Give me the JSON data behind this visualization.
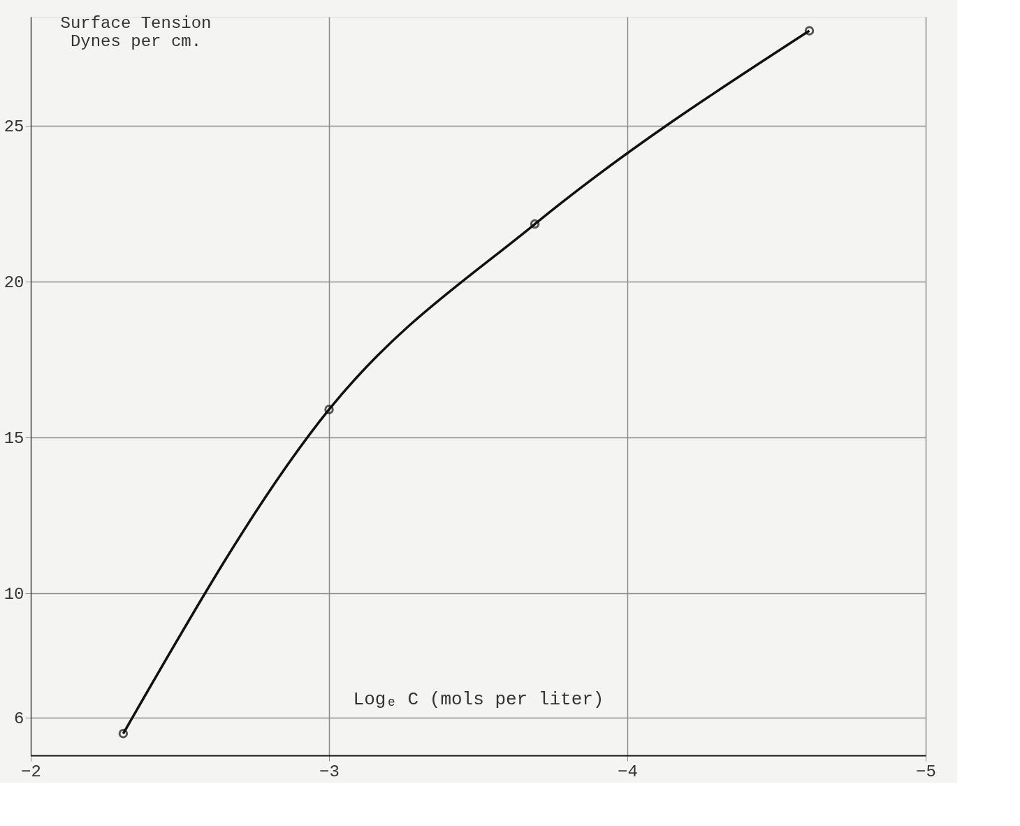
{
  "chart_data": {
    "type": "line",
    "xlabel": "Logₑ C (mols per liter)",
    "ylabel": "Surface Tension\nDynes per cm.",
    "x": [
      -2.31,
      -3.0,
      -3.69,
      -4.61
    ],
    "series": [
      {
        "color": "#111111",
        "values": [
          5.5,
          15.9,
          21.85,
          28.05
        ]
      }
    ],
    "xlim": [
      -2,
      -5
    ],
    "xticks": [
      -2,
      -3,
      -4,
      -5
    ],
    "ylim": [
      4.8,
      28.5
    ],
    "yticks": [
      6,
      10,
      15,
      20,
      25
    ],
    "grid": true,
    "marker": "circle",
    "line_style": "solid"
  }
}
